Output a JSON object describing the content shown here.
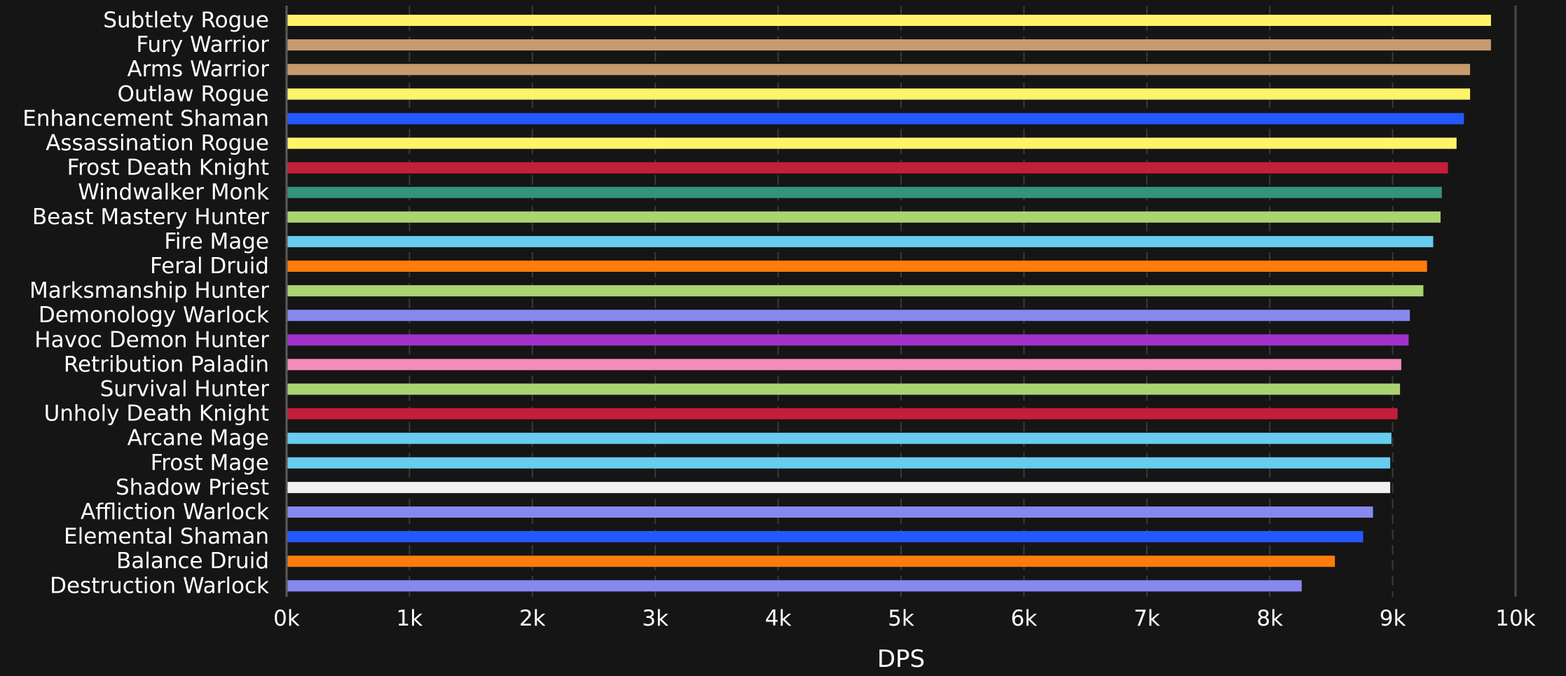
{
  "chart_data": {
    "type": "bar",
    "orientation": "horizontal",
    "xlabel": "DPS",
    "xlim": [
      0,
      10000
    ],
    "ticks": [
      {
        "value": 0,
        "label": "0k"
      },
      {
        "value": 1000,
        "label": "1k"
      },
      {
        "value": 2000,
        "label": "2k"
      },
      {
        "value": 3000,
        "label": "3k"
      },
      {
        "value": 4000,
        "label": "4k"
      },
      {
        "value": 5000,
        "label": "5k"
      },
      {
        "value": 6000,
        "label": "6k"
      },
      {
        "value": 7000,
        "label": "7k"
      },
      {
        "value": 8000,
        "label": "8k"
      },
      {
        "value": 9000,
        "label": "9k"
      },
      {
        "value": 10000,
        "label": "10k"
      }
    ],
    "grid": true,
    "bars": [
      {
        "label": "Subtlety Rogue",
        "value": 9800,
        "color": "#FFF468"
      },
      {
        "label": "Fury Warrior",
        "value": 9800,
        "color": "#C69B6D"
      },
      {
        "label": "Arms Warrior",
        "value": 9630,
        "color": "#C69B6D"
      },
      {
        "label": "Outlaw Rogue",
        "value": 9630,
        "color": "#FFF468"
      },
      {
        "label": "Enhancement Shaman",
        "value": 9580,
        "color": "#2459FF"
      },
      {
        "label": "Assassination Rogue",
        "value": 9520,
        "color": "#FFF468"
      },
      {
        "label": "Frost Death Knight",
        "value": 9450,
        "color": "#C41E3A"
      },
      {
        "label": "Windwalker Monk",
        "value": 9400,
        "color": "#33937F"
      },
      {
        "label": "Beast Mastery Hunter",
        "value": 9390,
        "color": "#AAD372"
      },
      {
        "label": "Fire Mage",
        "value": 9330,
        "color": "#68CCEF"
      },
      {
        "label": "Feral Druid",
        "value": 9280,
        "color": "#FF7C0A"
      },
      {
        "label": "Marksmanship Hunter",
        "value": 9250,
        "color": "#AAD372"
      },
      {
        "label": "Demonology Warlock",
        "value": 9140,
        "color": "#8788EE"
      },
      {
        "label": "Havoc Demon Hunter",
        "value": 9130,
        "color": "#A330C9"
      },
      {
        "label": "Retribution Paladin",
        "value": 9070,
        "color": "#F48CBA"
      },
      {
        "label": "Survival Hunter",
        "value": 9060,
        "color": "#AAD372"
      },
      {
        "label": "Unholy Death Knight",
        "value": 9040,
        "color": "#C41E3A"
      },
      {
        "label": "Arcane Mage",
        "value": 8990,
        "color": "#68CCEF"
      },
      {
        "label": "Frost Mage",
        "value": 8980,
        "color": "#68CCEF"
      },
      {
        "label": "Shadow Priest",
        "value": 8980,
        "color": "#F0F0F0"
      },
      {
        "label": "Affliction Warlock",
        "value": 8840,
        "color": "#8788EE"
      },
      {
        "label": "Elemental Shaman",
        "value": 8760,
        "color": "#2459FF"
      },
      {
        "label": "Balance Druid",
        "value": 8530,
        "color": "#FF7C0A"
      },
      {
        "label": "Destruction Warlock",
        "value": 8260,
        "color": "#8788EE"
      }
    ],
    "colors": {
      "background": "#151515",
      "grid": "#3a3a3a",
      "axis": "#5a5a5a",
      "text": "#ffffff"
    }
  }
}
